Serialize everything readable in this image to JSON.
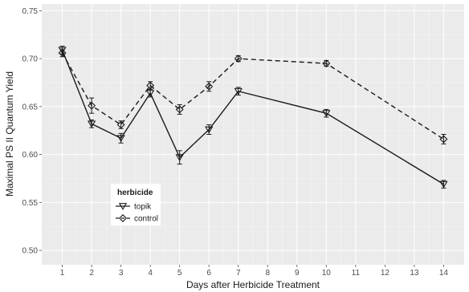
{
  "chart_data": {
    "type": "line",
    "title": "",
    "xlabel": "Days after Herbicide Treatment",
    "ylabel": "Maximal PS II Quantum Yield",
    "xlim": [
      0.3,
      14.7
    ],
    "ylim": [
      0.485,
      0.757
    ],
    "x_ticks": [
      1,
      2,
      3,
      4,
      5,
      6,
      7,
      8,
      9,
      10,
      11,
      12,
      13,
      14
    ],
    "y_ticks": [
      0.5,
      0.55,
      0.6,
      0.65,
      0.7,
      0.75
    ],
    "y_tick_labels": [
      "0.50",
      "0.55",
      "0.60",
      "0.65",
      "0.70",
      "0.75"
    ],
    "grid": true,
    "background": "panel-grey",
    "legend": {
      "title": "herbicide",
      "position": "inside-bottom-left",
      "entries": [
        "topik",
        "control"
      ]
    },
    "series": [
      {
        "name": "topik",
        "line": "solid",
        "marker": "triangle-down",
        "x": [
          1,
          2,
          3,
          4,
          5,
          6,
          7,
          10,
          14
        ],
        "y": [
          0.709,
          0.632,
          0.617,
          0.664,
          0.597,
          0.626,
          0.666,
          0.643,
          0.569
        ],
        "err": [
          0.004,
          0.004,
          0.005,
          0.004,
          0.007,
          0.005,
          0.004,
          0.004,
          0.004
        ]
      },
      {
        "name": "control",
        "line": "dashed",
        "marker": "diamond",
        "x": [
          1,
          2,
          3,
          4,
          5,
          6,
          7,
          10,
          14
        ],
        "y": [
          0.706,
          0.651,
          0.631,
          0.672,
          0.647,
          0.671,
          0.7,
          0.695,
          0.616
        ],
        "err": [
          0.004,
          0.008,
          0.004,
          0.004,
          0.005,
          0.005,
          0.003,
          0.003,
          0.005
        ]
      }
    ],
    "colors": {
      "panel": "#ebebeb",
      "grid_major": "#ffffff",
      "grid_minor": "#f5f5f5",
      "line": "#1a1a1a"
    }
  }
}
